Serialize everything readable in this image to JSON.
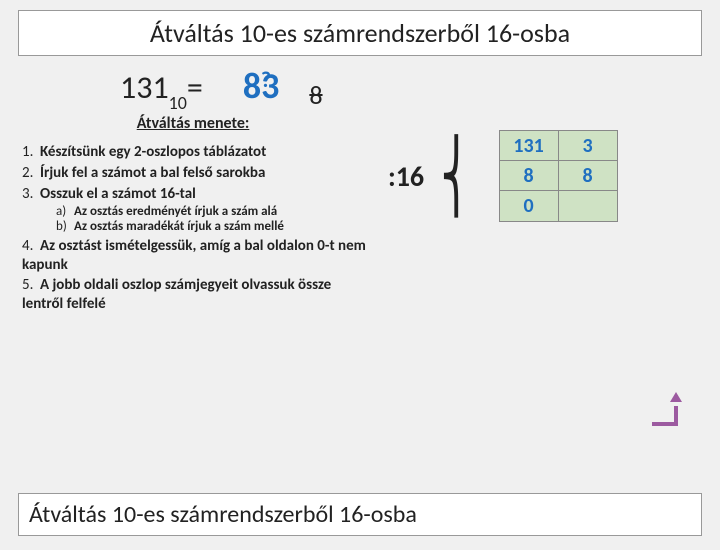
{
  "title": "Átváltás 10-es számrendszerből 16-osba",
  "equation": {
    "lhs_number": "131",
    "lhs_base": "10",
    "equals": "=",
    "result_left": "8",
    "result_right": "3",
    "question": "?",
    "struck": "8"
  },
  "process": {
    "heading": "Átváltás menete:",
    "steps": {
      "s1": {
        "n": "1.",
        "t": "Készítsünk egy 2-oszlopos táblázatot"
      },
      "s2": {
        "n": "2.",
        "t": "Írjuk fel a számot a bal felső sarokba"
      },
      "s3": {
        "n": "3.",
        "t": "Osszuk el a számot 16-tal"
      },
      "s3a": {
        "n": "a)",
        "t": "Az osztás eredményét írjuk a szám alá"
      },
      "s3b": {
        "n": "b)",
        "t": "Az osztás maradékát írjuk a szám mellé"
      },
      "s4": {
        "n": "4.",
        "t": "Az osztást ismételgessük, amíg a bal oldalon 0-t nem kapunk"
      },
      "s5": {
        "n": "5.",
        "t": "A jobb oldali oszlop számjegyeit olvassuk össze lentről felfelé"
      }
    }
  },
  "divide": {
    "colon": ":",
    "value": "16"
  },
  "table": {
    "col1": [
      "131",
      "8",
      "0"
    ],
    "col2": [
      "3",
      "8",
      ""
    ]
  },
  "colors": {
    "accent": "#1f6fc0",
    "table_bg": "#cfe2c4",
    "arrow": "#9c5aa0",
    "page_bg": "#f0f0f0",
    "border": "#999999",
    "text": "#222222"
  },
  "footer": "Átváltás 10-es számrendszerből 16-osba"
}
